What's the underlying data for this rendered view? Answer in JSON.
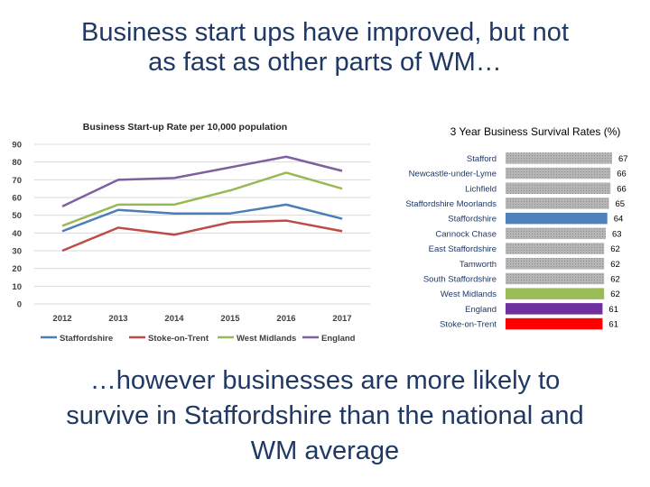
{
  "slide": {
    "title_line1": "Business start ups have improved, but not",
    "title_line2": "as fast as other parts of WM…",
    "footer_line1": "…however businesses are more likely to",
    "footer_line2": "survive in Staffordshire than the national and",
    "footer_line3": "WM average"
  },
  "chart_data": [
    {
      "type": "line",
      "title": "Business Start-up Rate per 10,000 population",
      "categories": [
        "2012",
        "2013",
        "2014",
        "2015",
        "2016",
        "2017"
      ],
      "ylim": [
        0,
        90
      ],
      "yticks": [
        0,
        10,
        20,
        30,
        40,
        50,
        60,
        70,
        80,
        90
      ],
      "grid": true,
      "legend": "bottom",
      "series": [
        {
          "name": "Staffordshire",
          "color": "#4a7ebb",
          "values": [
            41,
            53,
            51,
            51,
            56,
            48
          ]
        },
        {
          "name": "Stoke-on-Trent",
          "color": "#be4b48",
          "values": [
            30,
            43,
            39,
            46,
            47,
            41
          ]
        },
        {
          "name": "West Midlands",
          "color": "#98b954",
          "values": [
            44,
            56,
            56,
            64,
            74,
            65
          ]
        },
        {
          "name": "England",
          "color": "#7d60a0",
          "values": [
            55,
            70,
            71,
            77,
            83,
            75
          ]
        }
      ]
    },
    {
      "type": "bar",
      "orientation": "horizontal",
      "title": "3 Year Business Survival Rates (%)",
      "categories": [
        "Stafford",
        "Newcastle-under-Lyme",
        "Lichfield",
        "Staffordshire Moorlands",
        "Staffordshire",
        "Cannock Chase",
        "East Staffordshire",
        "Tamworth",
        "South Staffordshire",
        "West Midlands",
        "England",
        "Stoke-on-Trent"
      ],
      "values": [
        67,
        66,
        66,
        65,
        64,
        63,
        62,
        62,
        62,
        62,
        61,
        61
      ],
      "colors": [
        "#a6a6a6",
        "#a6a6a6",
        "#a6a6a6",
        "#a6a6a6",
        "#4f81bd",
        "#a6a6a6",
        "#a6a6a6",
        "#a6a6a6",
        "#a6a6a6",
        "#9bbb59",
        "#7030a0",
        "#ff0000"
      ],
      "xlim": [
        0,
        67
      ]
    }
  ]
}
